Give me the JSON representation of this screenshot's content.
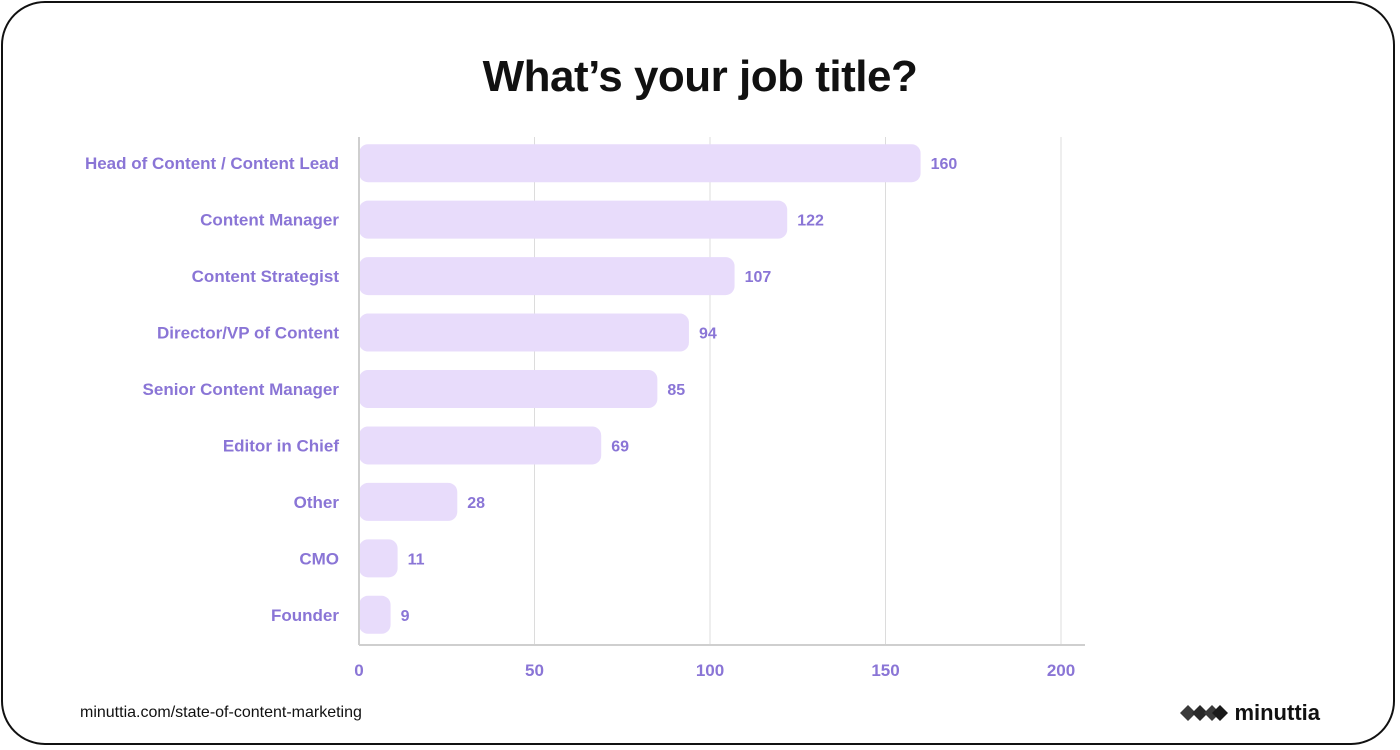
{
  "title": "What’s your job title?",
  "source": "minuttia.com/state-of-content-marketing",
  "brand": {
    "name": "minuttia",
    "logo_icon": "diamond-cluster-logo-icon"
  },
  "colors": {
    "bar": "#e8dcfb",
    "label": "#8a75d6",
    "grid": "#dcdcdc",
    "axis": "#cfcfcf",
    "title": "#111111"
  },
  "chart_data": {
    "type": "bar",
    "orientation": "horizontal",
    "title": "What’s your job title?",
    "xlabel": "",
    "ylabel": "",
    "xlim": [
      0,
      200
    ],
    "xticks": [
      0,
      50,
      100,
      150,
      200
    ],
    "grid": true,
    "categories": [
      "Head of Content / Content Lead",
      "Content Manager",
      "Content Strategist",
      "Director/VP of Content",
      "Senior Content Manager",
      "Editor in Chief",
      "Other",
      "CMO",
      "Founder"
    ],
    "values": [
      160,
      122,
      107,
      94,
      85,
      69,
      28,
      11,
      9
    ]
  }
}
